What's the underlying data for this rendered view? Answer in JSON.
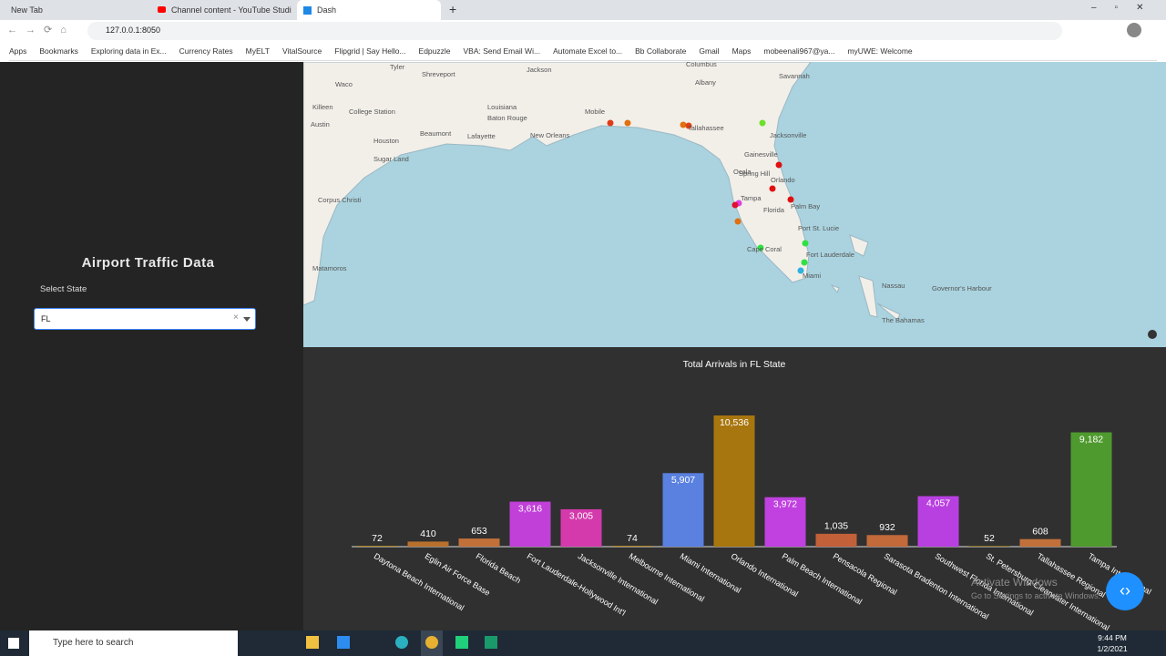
{
  "browser": {
    "tabs": [
      "New Tab",
      "Channel content - YouTube Studi",
      "Dash"
    ],
    "url": "127.0.0.1:8050",
    "bookmarks": [
      "Apps",
      "Bookmarks",
      "Exploring data in Ex...",
      "Currency Rates",
      "MyELT",
      "VitalSource",
      "Flipgrid | Say Hello...",
      "Edpuzzle",
      "VBA: Send Email Wi...",
      "Automate Excel to...",
      "Bb Collaborate",
      "Gmail",
      "Maps",
      "mobeenali967@ya...",
      "myUWE: Welcome"
    ]
  },
  "sidebar": {
    "title": "Airport Traffic Data",
    "label": "Select State",
    "dropdown": "FL"
  },
  "map": {
    "labels": [
      "Tyler",
      "Shreveport",
      "Jackson",
      "Columbus",
      "Albany",
      "Savannah",
      "Waco",
      "Killeen",
      "College Station",
      "Austin",
      "Houston",
      "Beaumont",
      "Lafayette",
      "Baton Rouge",
      "New Orleans",
      "Mobile",
      "Tallahassee",
      "Jacksonville",
      "Gainesville",
      "Ocala",
      "Orlando",
      "Spring Hill",
      "Tampa",
      "Palm Bay",
      "Port St. Lucie",
      "Cape Coral",
      "Fort Lauderdale",
      "Miami",
      "Nassau",
      "The Bahamas",
      "Governor's Harbour",
      "Matamoros",
      "Corpus Christi",
      "Sugar Land",
      "Louisiana",
      "Florida"
    ]
  },
  "chart_data": {
    "type": "bar",
    "title": "Total Arrivals in FL State",
    "categories": [
      "Daytona Beach International",
      "Eglin Air Force Base",
      "Florida Beach",
      "Fort Lauderdale-Hollywood Int'l",
      "Jacksonville International",
      "Melbourne International",
      "Miami International",
      "Orlando International",
      "Palm Beach International",
      "Pensacola Regional",
      "Sarasota Bradenton International",
      "Southwest Florida International",
      "St. Petersburg-Clearwater International",
      "Tallahassee Regional",
      "Tampa International"
    ],
    "values": [
      72,
      410,
      653,
      3616,
      3005,
      74,
      5907,
      10536,
      3972,
      1035,
      932,
      4057,
      52,
      608,
      9182
    ],
    "value_labels": [
      "72",
      "410",
      "653",
      "3,616",
      "3,005",
      "74",
      "5,907",
      "10,536",
      "3,972",
      "1,035",
      "932",
      "4,057",
      "52",
      "608",
      "9,182"
    ],
    "colors": [
      "#b08a2a",
      "#b8702c",
      "#c2703a",
      "#c040d8",
      "#d43aac",
      "#b08a2a",
      "#5a80e0",
      "#a8760e",
      "#c040e0",
      "#c2603a",
      "#c26a3a",
      "#b840e0",
      "#b08a2a",
      "#c2703a",
      "#4f9a2e"
    ]
  },
  "watermark": [
    "Activate Windows",
    "Go to Settings to activate Windows."
  ],
  "taskbar": {
    "search": "Type here to search",
    "time": "9:44 PM",
    "date": "1/2/2021"
  }
}
